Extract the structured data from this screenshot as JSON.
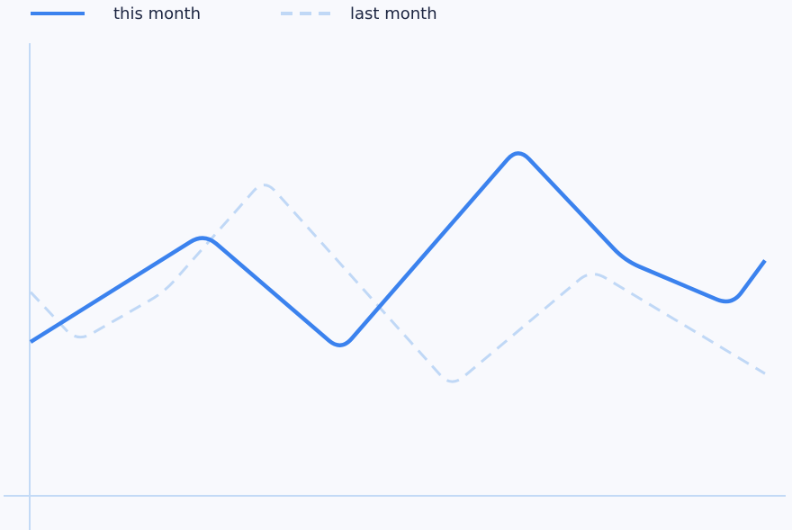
{
  "colors": {
    "background": "#f8f9fd",
    "this_month": "#3b82ee",
    "last_month": "#c0d8f6",
    "axis": "#c3daf6",
    "legend_text": "#1b2440"
  },
  "chart_data": {
    "type": "line",
    "x": [
      0,
      1,
      2,
      3,
      4,
      5,
      6,
      7,
      8,
      9,
      10,
      11
    ],
    "xlim": [
      0,
      11
    ],
    "ylim": [
      0,
      100
    ],
    "grid": false,
    "legend_placement": "top-left",
    "series": [
      {
        "name": "this month",
        "style": "solid",
        "x": [
          0,
          2.6,
          4.65,
          7.3,
          8.9,
          10.5,
          11
        ],
        "values": [
          34,
          58,
          32,
          77,
          52,
          42,
          52
        ]
      },
      {
        "name": "last month",
        "style": "dashed",
        "x": [
          0,
          0.7,
          2,
          3.5,
          6.3,
          8.4,
          11
        ],
        "values": [
          45,
          34,
          45,
          70,
          24,
          50,
          27
        ]
      }
    ]
  }
}
